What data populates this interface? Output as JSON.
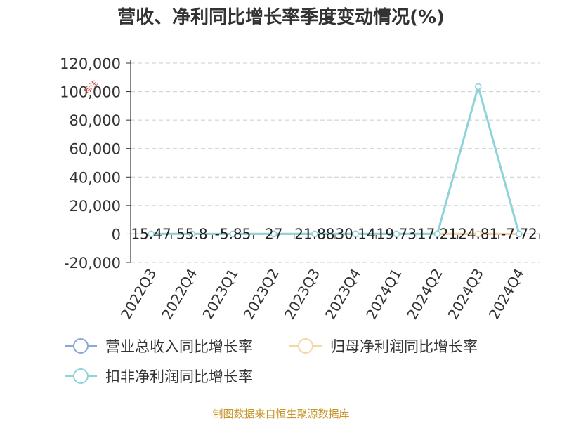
{
  "chart_data": {
    "type": "line",
    "title": "营收、净利同比增长率季度变动情况(%)",
    "xlabel": "",
    "ylabel": "",
    "categories": [
      "2022Q3",
      "2022Q4",
      "2023Q1",
      "2023Q2",
      "2023Q3",
      "2023Q4",
      "2024Q1",
      "2024Q2",
      "2024Q3",
      "2024Q4"
    ],
    "y_ticks": [
      "120,000",
      "100,000",
      "80,000",
      "60,000",
      "40,000",
      "20,000",
      "0",
      "-20,000"
    ],
    "ylim": [
      -20000,
      120000
    ],
    "grid": true,
    "legend_position": "bottom",
    "series": [
      {
        "name": "营业总收入同比增长率",
        "color": "#8aa8d8",
        "values": [
          15.47,
          55.8,
          -5.85,
          27,
          21.88,
          30.14,
          19.73,
          17.21,
          24.81,
          -7.72
        ],
        "data_labels": [
          "15.47",
          "55.8",
          "-5.85",
          "27",
          "21.88",
          "30.14",
          "19.73",
          "17.21",
          "24.81",
          "-7.72"
        ]
      },
      {
        "name": "归母净利润同比增长率",
        "color": "#f5d7a0",
        "values": [
          0,
          0,
          0,
          0,
          0,
          0,
          0,
          0,
          0,
          0
        ]
      },
      {
        "name": "扣非净利润同比增长率",
        "color": "#8ed3d8",
        "values": [
          0,
          0,
          0,
          0,
          0,
          0,
          0,
          0,
          103500,
          0
        ]
      }
    ],
    "annotations": [
      {
        "text": "标注"
      }
    ]
  },
  "footer": {
    "text": "制图数据来自恒生聚源数据库",
    "color": "#c8952a"
  }
}
